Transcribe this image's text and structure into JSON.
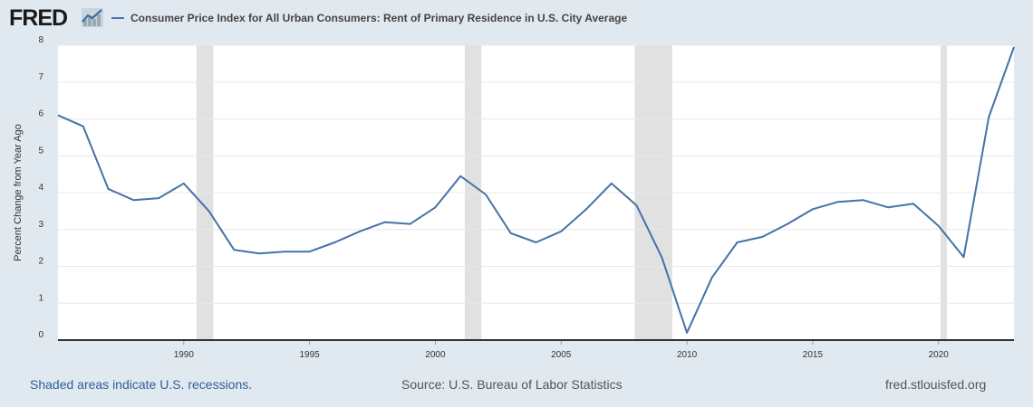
{
  "header": {
    "logo_text": "FRED",
    "logo_icon": "chart-trend-icon"
  },
  "colors": {
    "series": "#4572a7",
    "recession": "#e1e1e1",
    "grid": "#e8e8e8",
    "page_bg": "#e1e9f0",
    "plot_bg": "#ffffff"
  },
  "chart_data": {
    "type": "line",
    "title": "",
    "xlabel": "",
    "ylabel": "Percent Change from Year Ago",
    "ylim": [
      0,
      8
    ],
    "xlim": [
      1985,
      2023
    ],
    "grid": true,
    "legend_position": "top-left",
    "y_ticks": [
      0,
      1,
      2,
      3,
      4,
      5,
      6,
      7,
      8
    ],
    "x_ticks": [
      1990,
      1995,
      2000,
      2005,
      2010,
      2015,
      2020
    ],
    "series": [
      {
        "name": "Consumer Price Index for All Urban Consumers: Rent of Primary Residence in U.S. City Average",
        "color": "#4572a7",
        "x": [
          1985,
          1986,
          1987,
          1988,
          1989,
          1990,
          1991,
          1992,
          1993,
          1994,
          1995,
          1996,
          1997,
          1998,
          1999,
          2000,
          2001,
          2002,
          2003,
          2004,
          2005,
          2006,
          2007,
          2008,
          2009,
          2010,
          2011,
          2012,
          2013,
          2014,
          2015,
          2016,
          2017,
          2018,
          2019,
          2020,
          2021,
          2022,
          2023
        ],
        "values": [
          6.1,
          5.8,
          4.1,
          3.8,
          3.85,
          4.25,
          3.5,
          2.45,
          2.35,
          2.4,
          2.4,
          2.65,
          2.95,
          3.2,
          3.15,
          3.6,
          4.45,
          3.95,
          2.9,
          2.65,
          2.95,
          3.55,
          4.25,
          3.65,
          2.25,
          0.2,
          1.7,
          2.65,
          2.8,
          3.15,
          3.55,
          3.75,
          3.8,
          3.6,
          3.7,
          3.1,
          2.25,
          6.05,
          7.95
        ]
      }
    ],
    "recessions": [
      [
        1990.5,
        1991.17
      ],
      [
        2001.17,
        2001.83
      ],
      [
        2007.92,
        2009.42
      ],
      [
        2020.08,
        2020.33
      ]
    ]
  },
  "footer": {
    "recession_note": "Shaded areas indicate U.S. recessions.",
    "source": "Source: U.S. Bureau of Labor Statistics",
    "site": "fred.stlouisfed.org"
  }
}
